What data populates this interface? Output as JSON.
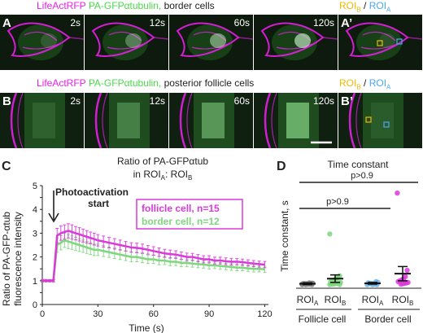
{
  "row_a": {
    "header": {
      "lifeact": "LifeActRFP",
      "pa": "PA-GFPαtubulin,",
      "cells": "border cells"
    },
    "roi_label": {
      "b": "ROI",
      "b_sub": "B",
      "sep": " / ",
      "a": "ROI",
      "a_sub": "A"
    },
    "panels": [
      {
        "letter": "A",
        "time": "2s"
      },
      {
        "letter": "",
        "time": "12s"
      },
      {
        "letter": "",
        "time": "60s"
      },
      {
        "letter": "",
        "time": "120s"
      },
      {
        "letter": "A’",
        "time": ""
      }
    ]
  },
  "row_b": {
    "header": {
      "lifeact": "LifeActRFP",
      "pa": "PA-GFPαtubulin,",
      "cells": "posterior follicle cells"
    },
    "roi_label": {
      "b": "ROI",
      "b_sub": "B",
      "sep": " / ",
      "a": "ROI",
      "a_sub": "A"
    },
    "panels": [
      {
        "letter": "B",
        "time": "2s"
      },
      {
        "letter": "",
        "time": "12s"
      },
      {
        "letter": "",
        "time": "60s"
      },
      {
        "letter": "",
        "time": "120s"
      },
      {
        "letter": "B’",
        "time": ""
      }
    ]
  },
  "colors": {
    "magenta": "#e81ee8",
    "green": "#7fd67f",
    "yellow": "#f2b800",
    "cyan": "#4aa8f0"
  },
  "panel_c": {
    "letter": "C",
    "title_line1": "Ratio of PA-GFPαtub",
    "title_line2a": "in ROI",
    "title_sub_a": "A",
    "title_line2b": ": ROI",
    "title_sub_b": "B",
    "ylabel_line1": "Ratio of PA-GFP-αtub",
    "ylabel_line2": "fluorescence intensity",
    "xlabel": "Time (s)",
    "annotation_line1": "Photoactivation",
    "annotation_line2": "start",
    "legend": [
      "follicle cell, n=15",
      "border cell, n=12"
    ]
  },
  "panel_d": {
    "letter": "D",
    "title": "Time constant",
    "ylabel": "Time constant, s",
    "p_top": "p>0.9",
    "p_bottom": "p>0.9",
    "roi_a": "ROI",
    "roi_a_sub": "A",
    "roi_b": "ROI",
    "roi_b_sub": "B",
    "group1": "Follicle cell",
    "group2": "Border cell"
  },
  "chart_data": [
    {
      "type": "line",
      "title": "Ratio of PA-GFPαtub in ROIA: ROIB",
      "xlabel": "Time (s)",
      "ylabel": "Ratio of PA-GFP-αtub fluorescence intensity",
      "xlim": [
        0,
        122
      ],
      "ylim": [
        0,
        5
      ],
      "xticks": [
        0,
        30,
        60,
        90,
        120
      ],
      "yticks": [
        0,
        0.5,
        1,
        1.5,
        2,
        2.5,
        3,
        3.5,
        4,
        4.5,
        5
      ],
      "x": [
        0,
        2,
        4,
        6,
        8,
        10,
        12,
        14,
        16,
        18,
        20,
        22,
        24,
        26,
        28,
        30,
        33,
        36,
        39,
        42,
        45,
        48,
        51,
        54,
        57,
        60,
        63,
        66,
        69,
        72,
        75,
        78,
        81,
        84,
        87,
        90,
        93,
        96,
        99,
        102,
        105,
        108,
        111,
        114,
        117,
        120
      ],
      "series": [
        {
          "name": "follicle cell, n=15",
          "color": "#d93ad9",
          "values": [
            1.0,
            1.0,
            1.0,
            1.0,
            2.9,
            3.0,
            3.05,
            3.1,
            3.05,
            3.0,
            2.95,
            2.9,
            2.85,
            2.8,
            2.75,
            2.7,
            2.65,
            2.6,
            2.55,
            2.5,
            2.45,
            2.4,
            2.38,
            2.35,
            2.3,
            2.25,
            2.2,
            2.15,
            2.12,
            2.1,
            2.05,
            2.0,
            2.0,
            1.95,
            1.9,
            1.9,
            1.85,
            1.85,
            1.82,
            1.8,
            1.8,
            1.78,
            1.75,
            1.72,
            1.7,
            1.68
          ],
          "error": [
            0.05,
            0.05,
            0.05,
            0.05,
            0.3,
            0.3,
            0.3,
            0.3,
            0.3,
            0.28,
            0.28,
            0.27,
            0.26,
            0.25,
            0.25,
            0.24,
            0.23,
            0.22,
            0.22,
            0.21,
            0.2,
            0.2,
            0.2,
            0.19,
            0.18,
            0.18,
            0.18,
            0.17,
            0.17,
            0.16,
            0.16,
            0.16,
            0.15,
            0.15,
            0.15,
            0.15,
            0.14,
            0.14,
            0.14,
            0.14,
            0.13,
            0.13,
            0.13,
            0.13,
            0.13,
            0.13
          ]
        },
        {
          "name": "border cell, n=12",
          "color": "#7fd67f",
          "values": [
            1.0,
            1.0,
            1.0,
            1.0,
            2.5,
            2.6,
            2.7,
            2.65,
            2.6,
            2.55,
            2.5,
            2.45,
            2.4,
            2.35,
            2.3,
            2.3,
            2.25,
            2.2,
            2.15,
            2.1,
            2.05,
            2.0,
            2.0,
            1.95,
            1.9,
            1.9,
            1.85,
            1.85,
            1.8,
            1.8,
            1.75,
            1.75,
            1.72,
            1.7,
            1.68,
            1.65,
            1.65,
            1.62,
            1.6,
            1.58,
            1.55,
            1.55,
            1.52,
            1.5,
            1.5,
            1.48
          ],
          "error": [
            0.05,
            0.05,
            0.05,
            0.05,
            0.3,
            0.3,
            0.3,
            0.3,
            0.28,
            0.28,
            0.27,
            0.26,
            0.25,
            0.25,
            0.24,
            0.24,
            0.23,
            0.22,
            0.22,
            0.21,
            0.2,
            0.2,
            0.2,
            0.19,
            0.18,
            0.18,
            0.18,
            0.17,
            0.17,
            0.16,
            0.16,
            0.16,
            0.15,
            0.15,
            0.15,
            0.15,
            0.14,
            0.14,
            0.14,
            0.14,
            0.13,
            0.13,
            0.13,
            0.13,
            0.13,
            0.13
          ]
        }
      ]
    },
    {
      "type": "scatter",
      "title": "Time constant",
      "ylabel": "Time constant, s",
      "categories": [
        "Follicle cell ROIA",
        "Follicle cell ROIB",
        "Border cell ROIA",
        "Border cell ROIB"
      ],
      "ylim": [
        0,
        230
      ],
      "series": [
        {
          "name": "Follicle cell ROIA",
          "color": "#808080",
          "mean": 3,
          "sem": 2,
          "values": [
            1,
            1,
            2,
            2,
            3,
            3,
            3,
            4,
            4,
            5,
            2,
            1,
            3,
            2,
            4
          ]
        },
        {
          "name": "Follicle cell ROIB",
          "color": "#7fd67f",
          "mean": 15,
          "sem": 9,
          "values": [
            122,
            22,
            18,
            15,
            12,
            10,
            8,
            6,
            5,
            4,
            3,
            2,
            2,
            1,
            1
          ]
        },
        {
          "name": "Border cell ROIA",
          "color": "#6ab0e8",
          "mean": 4,
          "sem": 2,
          "values": [
            1,
            1,
            2,
            3,
            3,
            4,
            5,
            6,
            8,
            2,
            1,
            3
          ]
        },
        {
          "name": "Border cell ROIB",
          "color": "#d93ad9",
          "mean": 27,
          "sem": 17,
          "values": [
            220,
            35,
            20,
            15,
            12,
            10,
            8,
            6,
            5,
            4,
            3,
            2
          ]
        }
      ]
    }
  ]
}
